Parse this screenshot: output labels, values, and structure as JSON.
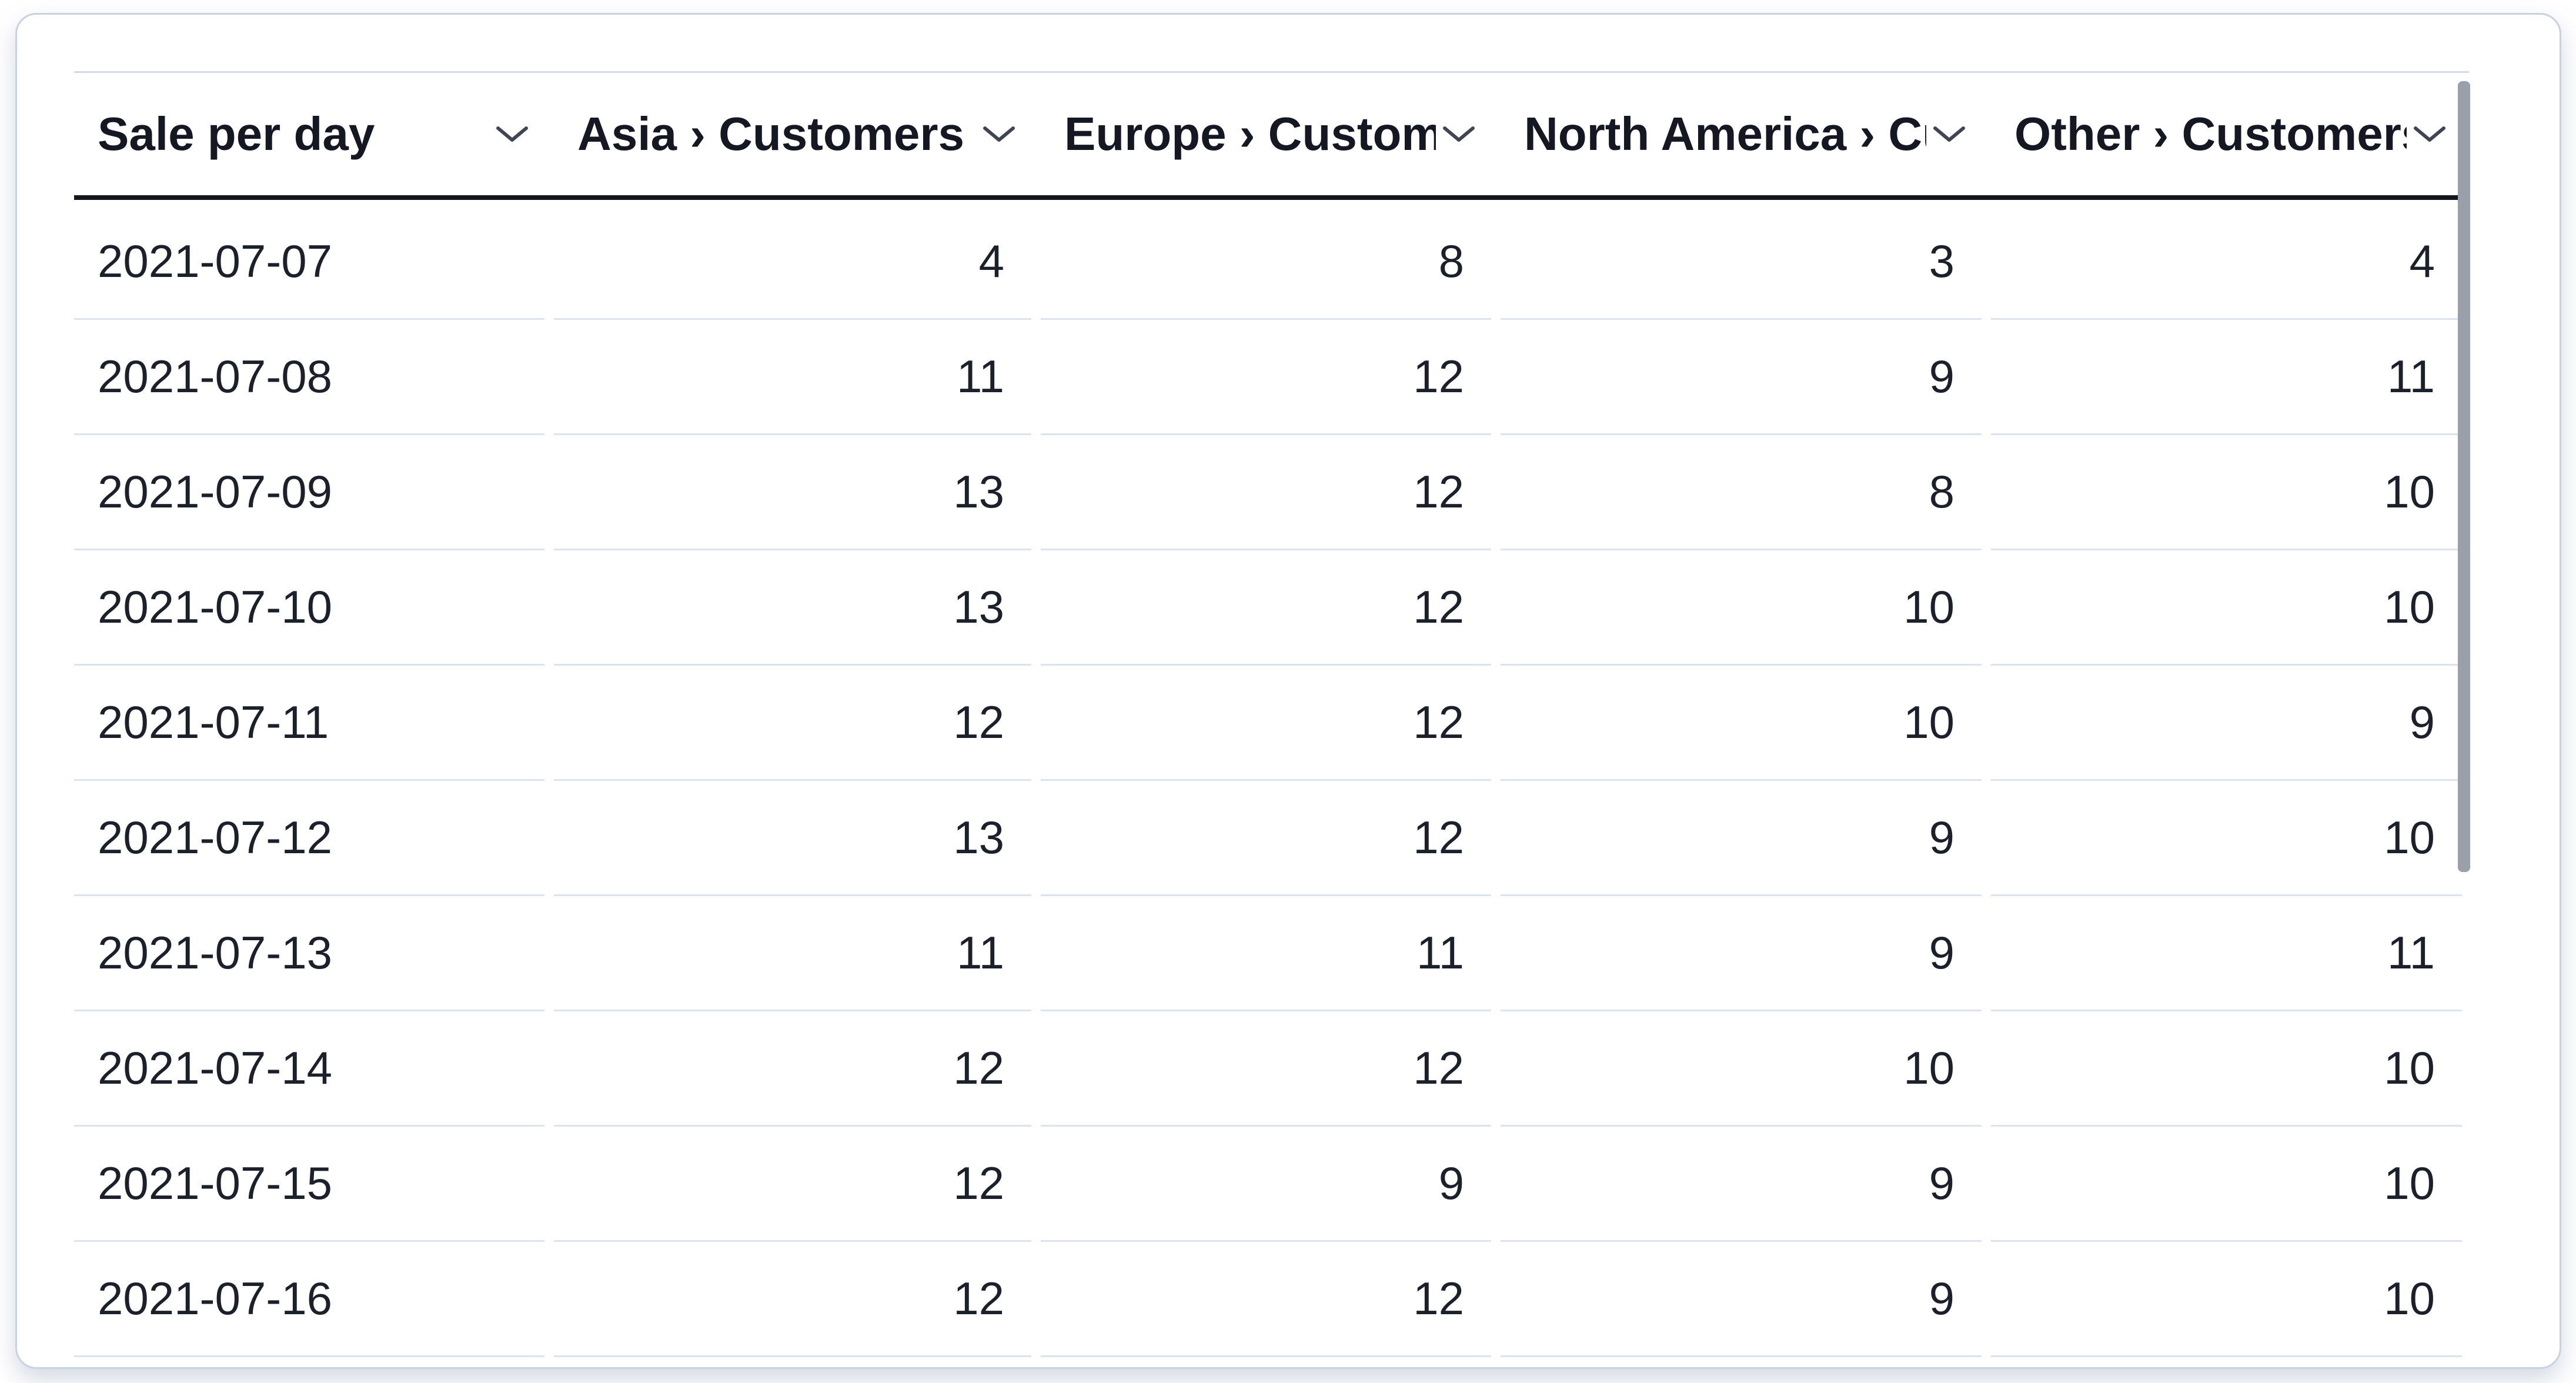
{
  "widget": {
    "type": "data-table",
    "columns": [
      {
        "label": "Sale per day"
      },
      {
        "label": "Asia › Customers"
      },
      {
        "label": "Europe › Customers"
      },
      {
        "label": "North America › Customers"
      },
      {
        "label": "Other › Customers"
      }
    ],
    "rows": [
      {
        "date": "2021-07-07",
        "values": [
          "4",
          "8",
          "3",
          "4"
        ]
      },
      {
        "date": "2021-07-08",
        "values": [
          "11",
          "12",
          "9",
          "11"
        ]
      },
      {
        "date": "2021-07-09",
        "values": [
          "13",
          "12",
          "8",
          "10"
        ]
      },
      {
        "date": "2021-07-10",
        "values": [
          "13",
          "12",
          "10",
          "10"
        ]
      },
      {
        "date": "2021-07-11",
        "values": [
          "12",
          "12",
          "10",
          "9"
        ]
      },
      {
        "date": "2021-07-12",
        "values": [
          "13",
          "12",
          "9",
          "10"
        ]
      },
      {
        "date": "2021-07-13",
        "values": [
          "11",
          "11",
          "9",
          "11"
        ]
      },
      {
        "date": "2021-07-14",
        "values": [
          "12",
          "12",
          "10",
          "10"
        ]
      },
      {
        "date": "2021-07-15",
        "values": [
          "12",
          "9",
          "9",
          "10"
        ]
      },
      {
        "date": "2021-07-16",
        "values": [
          "12",
          "12",
          "9",
          "10"
        ]
      }
    ],
    "icons": {
      "header_sort": "chevron-down"
    },
    "colors": {
      "header_text": "#151822",
      "body_text": "#1c202b",
      "header_underline": "#14161d",
      "row_separator": "#dce2ee",
      "table_top_border": "#d3dbe8",
      "card_border": "#c8d2e1",
      "chevron": "#3f4551",
      "scrollbar_thumb": "#99a0aa",
      "card_background": "#ffffff"
    }
  }
}
